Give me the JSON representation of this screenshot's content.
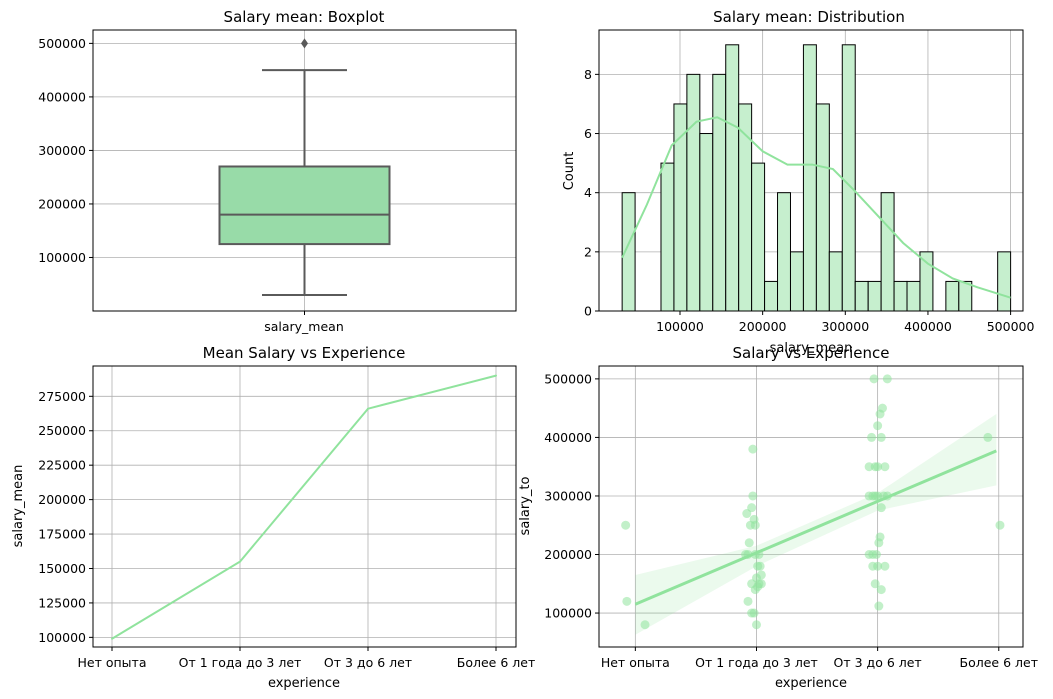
{
  "colors": {
    "accent": "#90e39d",
    "box_fill": "#98dba8",
    "hist_fill": "#c6efce",
    "grid": "#b0b0b0",
    "edge": "#5a5a5a"
  },
  "chart_data": [
    {
      "type": "box",
      "title": "Salary mean: Boxplot",
      "category": "salary_mean",
      "ylim": [
        0,
        525000
      ],
      "yticks": [
        100000,
        200000,
        300000,
        400000,
        500000
      ],
      "yticklabels": [
        "100000",
        "200000",
        "300000",
        "400000",
        "500000"
      ],
      "whisker_low": 30000,
      "q1": 125000,
      "median": 180000,
      "q3": 270000,
      "whisker_high": 450000,
      "outliers": [
        500000
      ],
      "grid": true
    },
    {
      "type": "histogram",
      "title": "Salary mean: Distribution",
      "xlabel": "salary_mean",
      "ylabel": "Count",
      "xlim": [
        2000,
        515000
      ],
      "ylim": [
        0,
        9.5
      ],
      "xticks": [
        100000,
        200000,
        300000,
        400000,
        500000
      ],
      "xticklabels": [
        "100000",
        "200000",
        "300000",
        "400000",
        "500000"
      ],
      "yticks": [
        0,
        2,
        4,
        6,
        8
      ],
      "yticklabels": [
        "0",
        "2",
        "4",
        "6",
        "8"
      ],
      "bin_start": 30000,
      "bin_width": 15667,
      "counts": [
        4,
        0,
        0,
        5,
        7,
        8,
        6,
        8,
        9,
        7,
        5,
        1,
        4,
        2,
        9,
        7,
        2,
        9,
        1,
        1,
        4,
        1,
        1,
        2,
        0,
        1,
        1,
        0,
        0,
        2
      ],
      "kde": [
        [
          30000,
          1.8
        ],
        [
          60000,
          3.6
        ],
        [
          90000,
          5.6
        ],
        [
          120000,
          6.4
        ],
        [
          145000,
          6.55
        ],
        [
          170000,
          6.2
        ],
        [
          200000,
          5.4
        ],
        [
          230000,
          4.95
        ],
        [
          260000,
          4.95
        ],
        [
          285000,
          4.8
        ],
        [
          310000,
          4.1
        ],
        [
          340000,
          3.2
        ],
        [
          370000,
          2.3
        ],
        [
          400000,
          1.6
        ],
        [
          430000,
          1.1
        ],
        [
          460000,
          0.8
        ],
        [
          500000,
          0.45
        ]
      ],
      "grid": true
    },
    {
      "type": "line",
      "title": "Mean Salary vs Experience",
      "xlabel": "experience",
      "ylabel": "salary_mean",
      "categories": [
        "Нет опыта",
        "От 1 года до 3 лет",
        "От 3 до 6 лет",
        "Более 6 лет"
      ],
      "values": [
        99000,
        155000,
        266000,
        290000
      ],
      "ylim": [
        93000,
        297000
      ],
      "yticks": [
        100000,
        125000,
        150000,
        175000,
        200000,
        225000,
        250000,
        275000
      ],
      "yticklabels": [
        "100000",
        "125000",
        "150000",
        "175000",
        "200000",
        "225000",
        "250000",
        "275000"
      ],
      "grid": true
    },
    {
      "type": "scatter",
      "title": "Salary vs Experience",
      "xlabel": "experience",
      "ylabel": "salary_to",
      "categories": [
        "Нет опыта",
        "От 1 года до 3 лет",
        "От 3 до 6 лет",
        "Более 6 лет"
      ],
      "xlim": [
        -0.3,
        3.2
      ],
      "ylim": [
        42000,
        522000
      ],
      "yticks": [
        100000,
        200000,
        300000,
        400000,
        500000
      ],
      "yticklabels": [
        "100000",
        "200000",
        "300000",
        "400000",
        "500000"
      ],
      "points": [
        [
          -0.08,
          250000
        ],
        [
          -0.07,
          120000
        ],
        [
          0.08,
          80000
        ],
        [
          0.97,
          380000
        ],
        [
          0.97,
          300000
        ],
        [
          0.96,
          280000
        ],
        [
          0.92,
          270000
        ],
        [
          0.98,
          260000
        ],
        [
          0.95,
          250000
        ],
        [
          0.99,
          250000
        ],
        [
          0.94,
          220000
        ],
        [
          0.93,
          200000
        ],
        [
          1.02,
          200000
        ],
        [
          0.99,
          200000
        ],
        [
          0.91,
          200000
        ],
        [
          1.03,
          180000
        ],
        [
          1.01,
          180000
        ],
        [
          1.04,
          165000
        ],
        [
          1.0,
          160000
        ],
        [
          0.96,
          150000
        ],
        [
          1.02,
          150000
        ],
        [
          1.04,
          150000
        ],
        [
          0.99,
          140000
        ],
        [
          1.01,
          145000
        ],
        [
          0.93,
          120000
        ],
        [
          0.96,
          100000
        ],
        [
          0.98,
          100000
        ],
        [
          1.0,
          80000
        ],
        [
          1.97,
          500000
        ],
        [
          2.08,
          500000
        ],
        [
          2.04,
          450000
        ],
        [
          2.02,
          440000
        ],
        [
          2.0,
          420000
        ],
        [
          1.95,
          400000
        ],
        [
          2.03,
          400000
        ],
        [
          1.93,
          350000
        ],
        [
          1.98,
          350000
        ],
        [
          2.0,
          350000
        ],
        [
          2.06,
          350000
        ],
        [
          1.93,
          300000
        ],
        [
          1.96,
          300000
        ],
        [
          1.98,
          300000
        ],
        [
          2.0,
          300000
        ],
        [
          2.05,
          300000
        ],
        [
          2.08,
          300000
        ],
        [
          2.03,
          280000
        ],
        [
          2.02,
          230000
        ],
        [
          2.01,
          220000
        ],
        [
          1.93,
          200000
        ],
        [
          1.96,
          200000
        ],
        [
          1.99,
          200000
        ],
        [
          1.96,
          180000
        ],
        [
          2.0,
          180000
        ],
        [
          2.06,
          180000
        ],
        [
          1.98,
          150000
        ],
        [
          2.03,
          140000
        ],
        [
          2.01,
          112000
        ],
        [
          2.91,
          400000
        ],
        [
          3.01,
          250000
        ]
      ],
      "regression": {
        "x0": 0,
        "y0": 115000,
        "x1": 2.98,
        "y1": 377000
      },
      "ci_band": [
        [
          0,
          165000,
          63000
        ],
        [
          1,
          215000,
          180000
        ],
        [
          2,
          305000,
          275000
        ],
        [
          2.98,
          440000,
          318000
        ]
      ],
      "grid": true
    }
  ]
}
